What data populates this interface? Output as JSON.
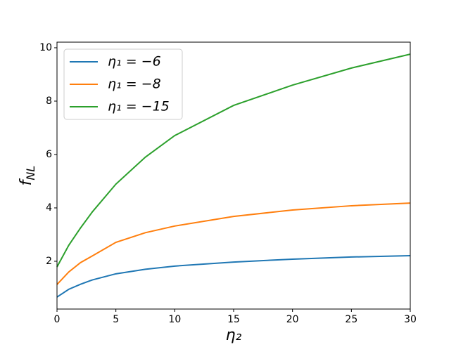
{
  "chart_data": {
    "type": "line",
    "x_label": "η₂",
    "y_label": "fNL",
    "x": [
      0,
      1,
      2,
      3,
      5,
      7.5,
      10,
      15,
      20,
      25,
      30
    ],
    "series": [
      {
        "name": "η₁ = −6",
        "color": "#1f77b4",
        "values": [
          0.66,
          0.95,
          1.14,
          1.3,
          1.53,
          1.7,
          1.82,
          1.97,
          2.08,
          2.16,
          2.21
        ]
      },
      {
        "name": "η₁ = −8",
        "color": "#ff7f0e",
        "values": [
          1.13,
          1.6,
          1.95,
          2.2,
          2.71,
          3.07,
          3.32,
          3.68,
          3.92,
          4.08,
          4.18
        ]
      },
      {
        "name": "η₁ = −15",
        "color": "#2ca02c",
        "values": [
          1.79,
          2.6,
          3.25,
          3.85,
          4.89,
          5.9,
          6.71,
          7.84,
          8.6,
          9.24,
          9.76
        ]
      }
    ],
    "xlim": [
      0,
      30
    ],
    "xticks": [
      0,
      5,
      10,
      15,
      20,
      25,
      30
    ],
    "ylim": [
      0.21,
      10.21
    ],
    "yticks": [
      2,
      4,
      6,
      8,
      10
    ],
    "legend": "upper left",
    "grid": false
  }
}
